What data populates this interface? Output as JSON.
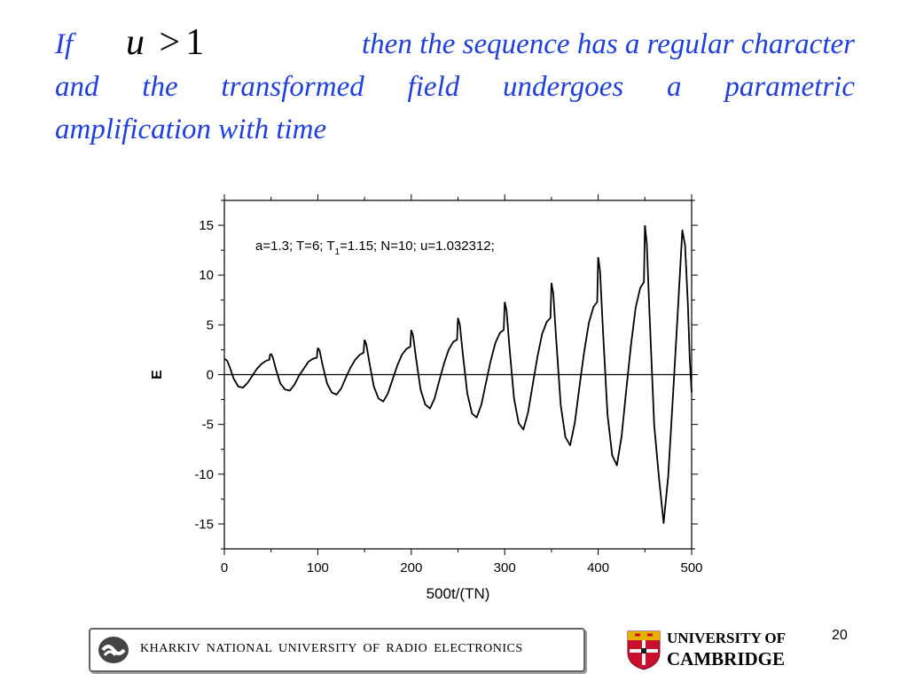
{
  "heading": {
    "word_if": "If",
    "line1_rest": "then the sequence  has a regular character",
    "line2": "and the transformed field undergoes a parametric",
    "line3": "amplification with time"
  },
  "math": {
    "var": "u",
    "op": ">",
    "num": "1"
  },
  "chart_data": {
    "type": "line",
    "title": "",
    "xlabel": "500t/(TN)",
    "ylabel": "E",
    "xlim": [
      0,
      500
    ],
    "ylim": [
      -17.5,
      17.5
    ],
    "xticks": [
      0,
      100,
      200,
      300,
      400,
      500
    ],
    "yticks": [
      15,
      10,
      5,
      0,
      -5,
      -10,
      -15
    ],
    "grid": false,
    "zero_line": true,
    "annotation": {
      "parts": [
        "a=1.3;  T=6;  T",
        "1",
        "=1.15;  N=10;  u=1.032312;"
      ],
      "subscript_index": 1
    },
    "periods": 10,
    "period_length": 50,
    "series": [
      {
        "name": "",
        "color": "#000000",
        "points": [
          [
            0,
            1.6
          ],
          [
            3,
            1.4
          ],
          [
            6,
            0.7
          ],
          [
            10,
            -0.4
          ],
          [
            15,
            -1.2
          ],
          [
            20,
            -1.3
          ],
          [
            25,
            -0.8
          ],
          [
            30,
            -0.1
          ],
          [
            35,
            0.6
          ],
          [
            40,
            1.1
          ],
          [
            45,
            1.4
          ],
          [
            48,
            1.5
          ],
          [
            49,
            2.0
          ],
          [
            50,
            2.1
          ],
          [
            52,
            1.7
          ],
          [
            55,
            0.6
          ],
          [
            60,
            -0.9
          ],
          [
            65,
            -1.5
          ],
          [
            70,
            -1.6
          ],
          [
            75,
            -1.0
          ],
          [
            80,
            -0.1
          ],
          [
            85,
            0.6
          ],
          [
            90,
            1.3
          ],
          [
            95,
            1.6
          ],
          [
            99,
            1.7
          ],
          [
            100,
            2.7
          ],
          [
            102,
            2.4
          ],
          [
            105,
            1.0
          ],
          [
            110,
            -0.9
          ],
          [
            115,
            -1.8
          ],
          [
            120,
            -2.0
          ],
          [
            125,
            -1.4
          ],
          [
            130,
            -0.3
          ],
          [
            135,
            0.7
          ],
          [
            140,
            1.5
          ],
          [
            145,
            2.0
          ],
          [
            149,
            2.2
          ],
          [
            150,
            3.5
          ],
          [
            152,
            3.0
          ],
          [
            155,
            1.3
          ],
          [
            160,
            -1.2
          ],
          [
            165,
            -2.4
          ],
          [
            170,
            -2.7
          ],
          [
            175,
            -1.9
          ],
          [
            180,
            -0.5
          ],
          [
            185,
            0.9
          ],
          [
            190,
            2.0
          ],
          [
            195,
            2.6
          ],
          [
            199,
            2.8
          ],
          [
            200,
            4.5
          ],
          [
            202,
            3.9
          ],
          [
            205,
            1.7
          ],
          [
            210,
            -1.5
          ],
          [
            215,
            -3.0
          ],
          [
            220,
            -3.4
          ],
          [
            225,
            -2.4
          ],
          [
            230,
            -0.6
          ],
          [
            235,
            1.1
          ],
          [
            240,
            2.5
          ],
          [
            245,
            3.3
          ],
          [
            249,
            3.5
          ],
          [
            250,
            5.7
          ],
          [
            252,
            5.0
          ],
          [
            255,
            2.2
          ],
          [
            260,
            -1.9
          ],
          [
            265,
            -3.9
          ],
          [
            270,
            -4.3
          ],
          [
            275,
            -3.0
          ],
          [
            280,
            -0.8
          ],
          [
            285,
            1.4
          ],
          [
            290,
            3.2
          ],
          [
            295,
            4.2
          ],
          [
            299,
            4.5
          ],
          [
            300,
            7.3
          ],
          [
            302,
            6.4
          ],
          [
            305,
            2.8
          ],
          [
            310,
            -2.4
          ],
          [
            315,
            -4.9
          ],
          [
            320,
            -5.5
          ],
          [
            325,
            -3.8
          ],
          [
            330,
            -1.0
          ],
          [
            335,
            1.8
          ],
          [
            340,
            4.1
          ],
          [
            345,
            5.3
          ],
          [
            349,
            5.7
          ],
          [
            350,
            9.2
          ],
          [
            352,
            8.1
          ],
          [
            355,
            3.6
          ],
          [
            360,
            -3.1
          ],
          [
            365,
            -6.3
          ],
          [
            370,
            -7.1
          ],
          [
            375,
            -4.8
          ],
          [
            380,
            -1.2
          ],
          [
            385,
            2.3
          ],
          [
            390,
            5.2
          ],
          [
            395,
            6.8
          ],
          [
            399,
            7.3
          ],
          [
            400,
            11.8
          ],
          [
            402,
            10.4
          ],
          [
            405,
            4.6
          ],
          [
            410,
            -4.0
          ],
          [
            415,
            -8.1
          ],
          [
            420,
            -9.1
          ],
          [
            425,
            -6.2
          ],
          [
            430,
            -1.6
          ],
          [
            435,
            2.9
          ],
          [
            440,
            6.7
          ],
          [
            445,
            8.7
          ],
          [
            449,
            9.3
          ],
          [
            450,
            15.0
          ],
          [
            452,
            13.2
          ],
          [
            455,
            5.9
          ],
          [
            460,
            -5.1
          ],
          [
            465,
            -10.3
          ],
          [
            470,
            -14.9
          ],
          [
            475,
            -10.2
          ],
          [
            480,
            -2.2
          ],
          [
            485,
            6.0
          ],
          [
            490,
            14.5
          ],
          [
            493,
            13.0
          ],
          [
            496,
            7.0
          ],
          [
            498,
            1.5
          ],
          [
            500,
            -1.8
          ]
        ]
      }
    ]
  },
  "footer": {
    "banner_text": "KHARKIV  NATIONAL  UNIVERSITY  OF  RADIO  ELECTRONICS",
    "cambridge_line1": "UNIVERSITY OF",
    "cambridge_line2": "CAMBRIDGE",
    "page_number": "20"
  }
}
